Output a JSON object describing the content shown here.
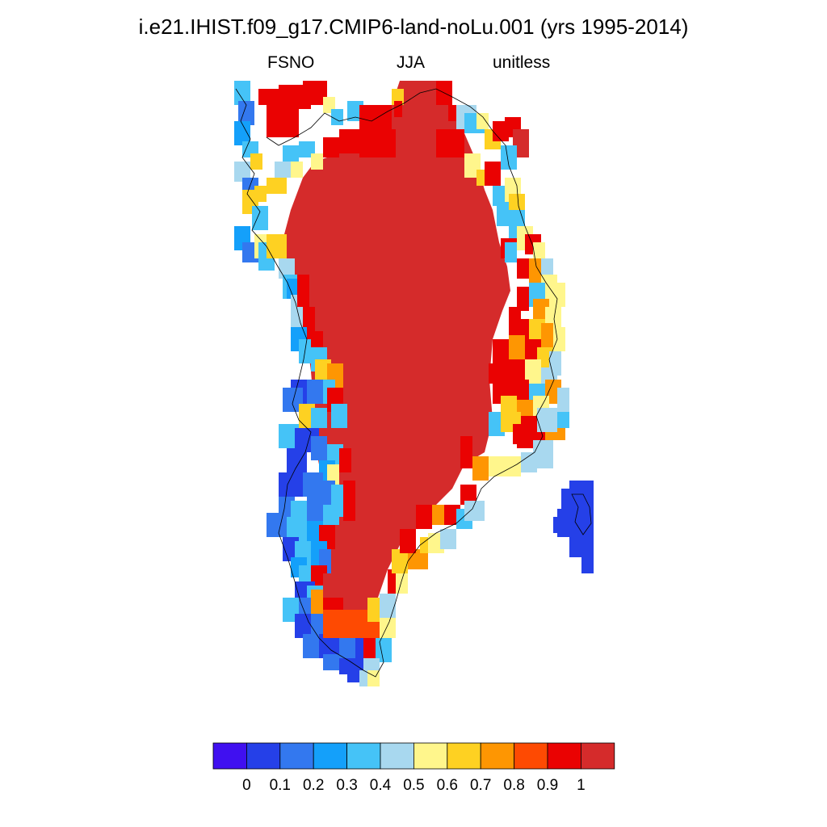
{
  "header": {
    "title": "i.e21.IHIST.f09_g17.CMIP6-land-noLu.001 (yrs 1995-2014)",
    "left_label": "FSNO",
    "center_label": "JJA",
    "right_label": "unitless"
  },
  "chart_data": {
    "type": "heatmap",
    "variable": "FSNO",
    "season": "JJA",
    "units": "unitless",
    "region": "Greenland",
    "colorbar": {
      "levels": [
        0,
        0.1,
        0.2,
        0.3,
        0.4,
        0.5,
        0.6,
        0.7,
        0.8,
        0.9,
        1
      ],
      "tick_labels": [
        "0",
        "0.1",
        "0.2",
        "0.3",
        "0.4",
        "0.5",
        "0.6",
        "0.7",
        "0.8",
        "0.9",
        "1"
      ],
      "colors": [
        "#4010f0",
        "#2540e8",
        "#3378ef",
        "#14a0fa",
        "#45c3f7",
        "#a8d8ef",
        "#fff68c",
        "#fed122",
        "#fe9602",
        "#fe4a02",
        "#ea0202",
        "#d52b2b"
      ]
    },
    "interior_value": 1.0,
    "description_values": {
      "ice_sheet_interior": 1.0,
      "east_coast_margin": [
        0.5,
        0.9
      ],
      "southwest_coast": [
        0.1,
        0.4
      ],
      "southern_tip": [
        0.2,
        0.9
      ],
      "iceland_fragment_east": 0.1
    }
  }
}
